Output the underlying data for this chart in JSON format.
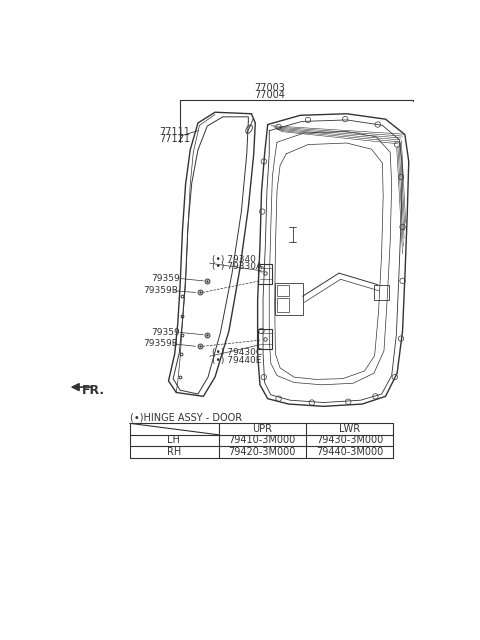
{
  "bg_color": "#ffffff",
  "line_color": "#333333",
  "text_color": "#333333",
  "label_77003": "77003",
  "label_77004": "77004",
  "label_77111": "77111",
  "label_77121": "77121",
  "label_79340": "(•) 79340",
  "label_79330A": "(•) 79330A",
  "label_79359_u": "79359",
  "label_79359B_u": "79359B",
  "label_79359_l": "79359",
  "label_79359B_l": "79359B",
  "label_79430C": "(•) 79430C",
  "label_79440E": "(•) 79440E",
  "fr_label": "FR.",
  "hinge_label": "(•)HINGE ASSY - DOOR",
  "table_headers": [
    "",
    "UPR",
    "LWR"
  ],
  "table_rows": [
    [
      "LH",
      "79410-3M000",
      "79430-3M000"
    ],
    [
      "RH",
      "79420-3M000",
      "79440-3M000"
    ]
  ]
}
